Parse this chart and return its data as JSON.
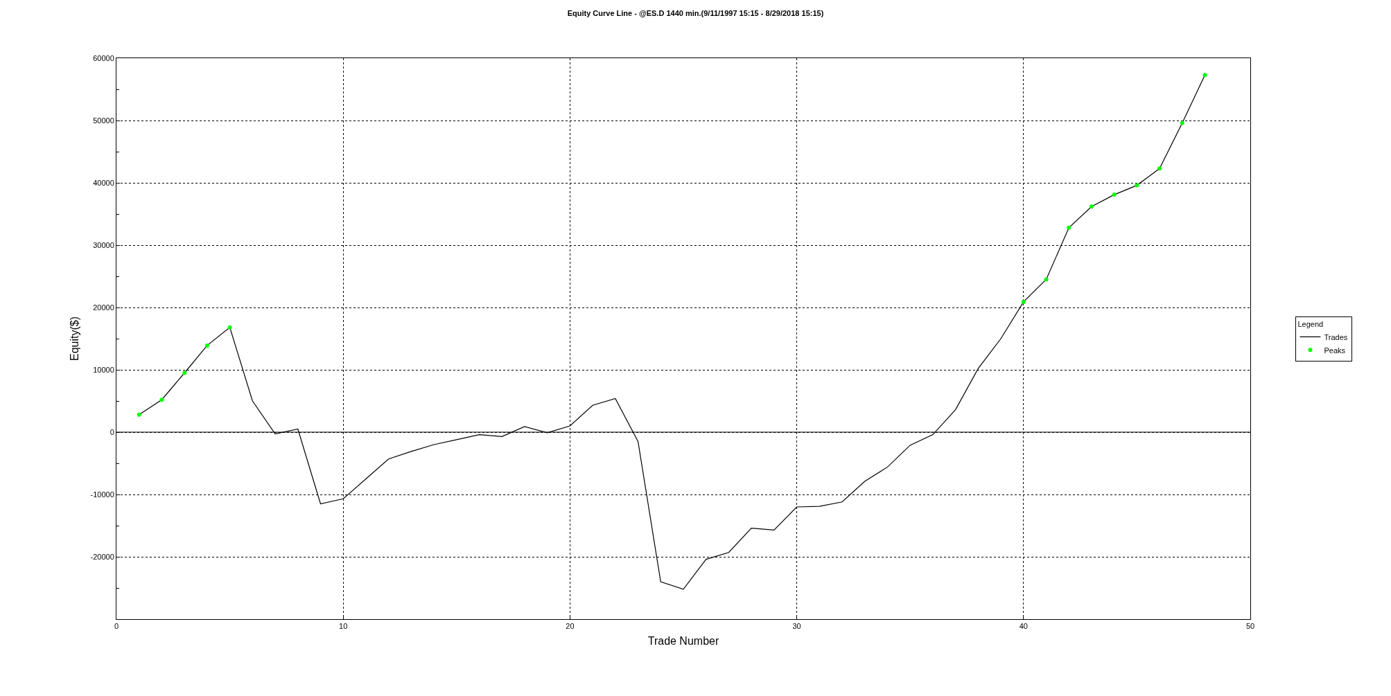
{
  "chart_data": {
    "type": "line",
    "title": "Equity Curve Line - @ES.D 1440 min.(9/11/1997 15:15 - 8/29/2018 15:15)",
    "xlabel": "Trade Number",
    "ylabel": "Equity($)",
    "legend_title": "Legend",
    "legend": "right",
    "grid": true,
    "x": [
      1,
      2,
      3,
      4,
      5,
      6,
      7,
      8,
      9,
      10,
      11,
      12,
      13,
      14,
      15,
      16,
      17,
      18,
      19,
      20,
      21,
      22,
      23,
      24,
      25,
      26,
      27,
      28,
      29,
      30,
      31,
      32,
      33,
      34,
      35,
      36,
      37,
      38,
      39,
      40,
      41,
      42,
      43,
      44,
      45,
      46,
      47,
      48
    ],
    "series": [
      {
        "name": "Trades",
        "type": "line",
        "color": "#000000",
        "marker": "none",
        "line_style": "solid",
        "values": [
          2800,
          5200,
          9500,
          13900,
          16800,
          5000,
          -300,
          500,
          -11500,
          -10700,
          -7500,
          -4300,
          -3100,
          -2000,
          -1200,
          -400,
          -700,
          900,
          -100,
          1000,
          4300,
          5400,
          -1500,
          -24000,
          -25200,
          -20400,
          -19300,
          -15400,
          -15700,
          -12000,
          -11900,
          -11200,
          -7900,
          -5600,
          -2100,
          -400,
          3600,
          10200,
          15000,
          20900,
          24500,
          32800,
          36200,
          38100,
          39600,
          42300,
          49600,
          57300
        ]
      },
      {
        "name": "Peaks",
        "type": "scatter",
        "color": "#00ff00",
        "marker": "circle",
        "values": [
          2800,
          5200,
          9500,
          13900,
          16800,
          null,
          null,
          null,
          null,
          null,
          null,
          null,
          null,
          null,
          null,
          null,
          null,
          null,
          null,
          null,
          null,
          null,
          null,
          null,
          null,
          null,
          null,
          null,
          null,
          null,
          null,
          null,
          null,
          null,
          null,
          null,
          null,
          null,
          null,
          20900,
          24500,
          32800,
          36200,
          38100,
          39600,
          42300,
          49600,
          57300
        ]
      }
    ],
    "xlim": [
      0,
      50
    ],
    "xticks": [
      0,
      10,
      20,
      30,
      40,
      50
    ],
    "ylim": [
      -30000,
      60000
    ],
    "yticks": [
      {
        "value": -30000,
        "label": null
      },
      {
        "value": -25000,
        "label": null
      },
      -20000,
      {
        "value": -15000,
        "label": null
      },
      -10000,
      {
        "value": -5000,
        "label": null
      },
      0,
      {
        "value": 5000,
        "label": null
      },
      10000,
      {
        "value": 15000,
        "label": null
      },
      20000,
      {
        "value": 25000,
        "label": null
      },
      30000,
      {
        "value": 35000,
        "label": null
      },
      40000,
      {
        "value": 45000,
        "label": null
      },
      50000,
      {
        "value": 55000,
        "label": null
      },
      60000
    ]
  }
}
